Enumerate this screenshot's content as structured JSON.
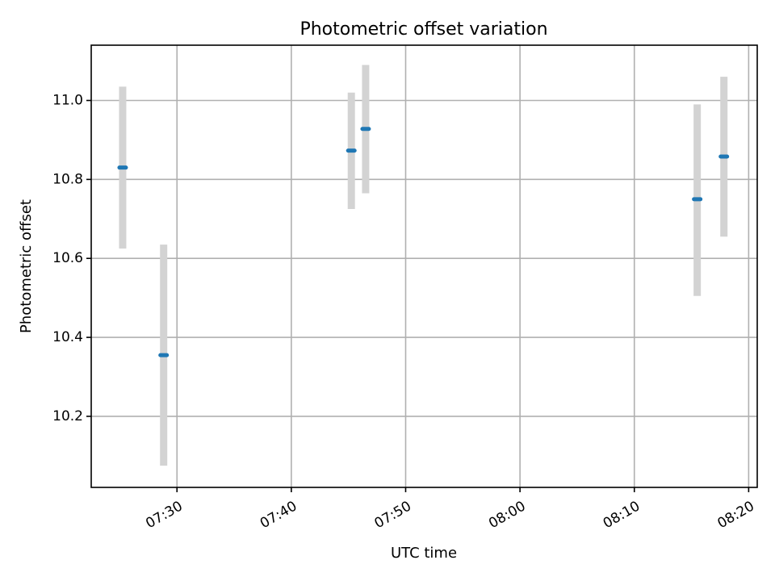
{
  "chart_data": {
    "type": "scatter",
    "title": "Photometric offset variation",
    "xlabel": "UTC time",
    "ylabel": "Photometric offset",
    "x_is_time": true,
    "xlim": [
      "07:22:30",
      "08:20:45"
    ],
    "ylim": [
      10.02,
      11.14
    ],
    "x_ticks": [
      "07:30",
      "07:40",
      "07:50",
      "08:00",
      "08:10",
      "08:20"
    ],
    "y_ticks": [
      10.2,
      10.4,
      10.6,
      10.8,
      11.0
    ],
    "y_tick_labels": [
      "10.2",
      "10.4",
      "10.6",
      "10.8",
      "11.0"
    ],
    "grid": true,
    "points": [
      {
        "time": "07:25:15",
        "y": 10.83,
        "ymin": 10.625,
        "ymax": 11.035
      },
      {
        "time": "07:28:50",
        "y": 10.355,
        "ymin": 10.075,
        "ymax": 10.635
      },
      {
        "time": "07:45:15",
        "y": 10.873,
        "ymin": 10.725,
        "ymax": 11.02
      },
      {
        "time": "07:46:30",
        "y": 10.928,
        "ymin": 10.765,
        "ymax": 11.09
      },
      {
        "time": "08:15:30",
        "y": 10.75,
        "ymin": 10.505,
        "ymax": 10.99
      },
      {
        "time": "08:17:50",
        "y": 10.858,
        "ymin": 10.655,
        "ymax": 11.06
      }
    ],
    "colors": {
      "point": "#1f77b4",
      "errorbar": "#d3d3d3",
      "grid": "#b0b0b0"
    }
  }
}
